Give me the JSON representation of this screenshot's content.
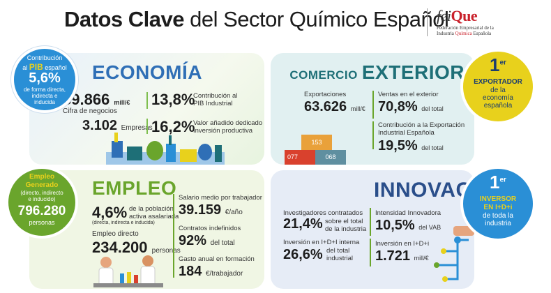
{
  "header": {
    "title_bold": "Datos Clave",
    "title_rest": "del Sector Químico Español",
    "logo_text_pre": "fei",
    "logo_text_q": "Que",
    "logo_sub1": "Federación Empresarial de la",
    "logo_sub2_a": "Industria ",
    "logo_sub2_b": "Química",
    "logo_sub2_c": " Española"
  },
  "economia": {
    "title": "ECONOMÍA",
    "badge": {
      "line1": "Contribución",
      "line2_a": "al ",
      "line2_b": "PIB",
      "line2_c": " español",
      "value": "5,6%",
      "line3": "de forma directa,",
      "line4": "indirecta e",
      "line5": "inducida"
    },
    "cifra_value": "89.866",
    "cifra_unit": "mill/€",
    "cifra_label": "Cifra de negocios",
    "pib_value": "13,8%",
    "pib_label1": "Contribución al",
    "pib_label2": "PIB Industrial",
    "empresas_value": "3.102",
    "empresas_label": "Empresas",
    "vab_value": "16,2%",
    "vab_label1": "Valor añadido dedicado a",
    "vab_label2": "Inversión productiva"
  },
  "comercio": {
    "title_small": "COMERCIO",
    "title_big": "EXTERIOR",
    "export_label": "Exportaciones",
    "export_value": "63.626",
    "export_unit": "mill/€",
    "ventas_label": "Ventas en el exterior",
    "ventas_value": "70,8%",
    "ventas_unit": "del total",
    "contrib_label1": "Contribución a la Exportación",
    "contrib_label2": "Industrial Española",
    "contrib_value": "19,5%",
    "contrib_unit": "del total",
    "containers": [
      "153",
      "077",
      "068"
    ],
    "badge": {
      "num": "1",
      "sup": "er",
      "line1": "EXPORTADOR",
      "line2": "de la",
      "line3": "economía",
      "line4": "española"
    }
  },
  "empleo": {
    "title": "EMPLEO",
    "badge": {
      "line1": "Empleo",
      "line2": "Generado",
      "line3": "(directo, indirecto",
      "line4": "e inducido)",
      "value": "796.280",
      "line5": "personas"
    },
    "pob_value": "4,6%",
    "pob_label1": "de la población",
    "pob_label2": "activa asalariada",
    "pob_label3": "(directa, indirecta e inducida)",
    "directo_label": "Empleo directo",
    "directo_value": "234.200",
    "directo_unit": "personas",
    "salario_label": "Salario medio por trabajador",
    "salario_value": "39.159",
    "salario_unit": "€/año",
    "contratos_label": "Contratos indefinidos",
    "contratos_value": "92%",
    "contratos_unit": "del total",
    "gasto_label": "Gasto anual en formación",
    "gasto_value": "184",
    "gasto_unit": "€/trabajador"
  },
  "innovacion": {
    "title": "INNOVACIÓN",
    "invest_label": "Investigadores contratados",
    "invest_value": "21,4%",
    "invest_unit1": "sobre el total",
    "invest_unit2": "de la industria",
    "intens_label": "Intensidad Innovadora",
    "intens_value": "10,5%",
    "intens_unit": "del VAB",
    "interna_label": "Inversión en I+D+I interna",
    "interna_value": "26,6%",
    "interna_unit1": "del total",
    "interna_unit2": "industrial",
    "idi_label": "Inversión en I+D+i",
    "idi_value": "1.721",
    "idi_unit": "mill/€",
    "badge": {
      "num": "1",
      "sup": "er",
      "line1": "INVERSOR",
      "line2": "EN I+D+i",
      "line3": "de toda la",
      "line4": "industria"
    }
  },
  "colors": {
    "blue": "#2a8fd6",
    "green": "#6aa52c",
    "yellow": "#e8d11c",
    "teal": "#1e6f77",
    "navy": "#2a4e8a"
  }
}
